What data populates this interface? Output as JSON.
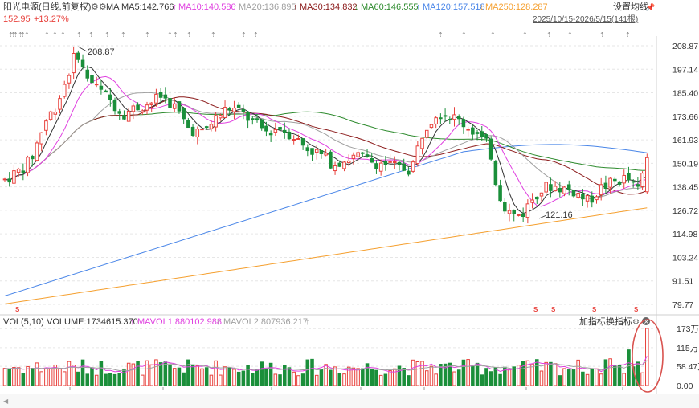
{
  "header": {
    "stock_name": "阳光电源(日线,前复权)",
    "settings_icon": "gear-icon",
    "ma_label": "MA",
    "ma5": "MA5:142.766",
    "ma10": "MA10:140.586",
    "ma20": "MA20:136.895",
    "ma30": "MA30:134.832",
    "ma60": "MA60:146.555",
    "ma120": "MA120:157.518",
    "ma250": "MA250:128.287",
    "price": "152.95",
    "change": "+13.27%",
    "range": "2025/10/15-2026/5/15(141根)",
    "settings_button": "设置均线"
  },
  "volume_header": {
    "vol_label": "VOL(5,10)",
    "volume": "VOLUME:1734615.370",
    "mavol1": "MAVOL1:880102.988",
    "mavol2": "MAVOL2:807936.217",
    "add_indicator": "加指标",
    "change_indicator": "换指标"
  },
  "colors": {
    "up": "#e8413c",
    "down": "#1a8f3a",
    "ma5": "#333333",
    "ma10": "#e040e0",
    "ma20": "#a0a0a0",
    "ma30": "#8b1a1a",
    "ma60": "#2e8b2e",
    "ma120": "#4a86e8",
    "ma250": "#f5a030",
    "grid": "#e6e6e6",
    "axis_text": "#333333",
    "circle": "#d9534f"
  },
  "chart_data": {
    "type": "candlestick",
    "price_axis": {
      "ticks": [
        "208.87",
        "197.14",
        "185.40",
        "173.66",
        "161.93",
        "150.19",
        "138.45",
        "126.72",
        "114.98",
        "103.24",
        "91.51",
        "79.77"
      ],
      "min": 79.77,
      "max": 208.87
    },
    "volume_axis": {
      "ticks": [
        "173万",
        "115万",
        "58.47万",
        "0.00"
      ],
      "max": 1734615
    },
    "x_labels": [
      "11",
      "12",
      "2026",
      "02",
      "03",
      "04",
      "05"
    ],
    "annotations": [
      "208.87",
      "121.16"
    ],
    "count": 141
  }
}
